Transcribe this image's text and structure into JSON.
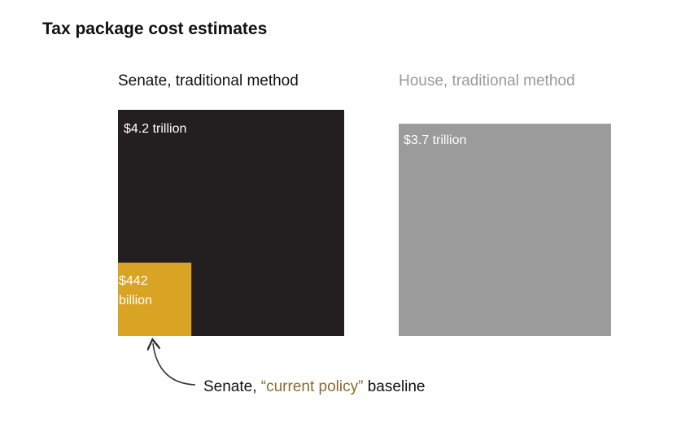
{
  "title": "Tax package cost estimates",
  "colors": {
    "senate": "#231f20",
    "house": "#9b9b9b",
    "baseline": "#d9a324",
    "highlight_text": "#8a6a2e"
  },
  "chart_data": {
    "type": "proportional-area",
    "unit": "USD",
    "panels": [
      {
        "label": "Senate, traditional method",
        "value": 4200,
        "value_label": "$4.2 trillion"
      },
      {
        "label": "House, traditional method",
        "value": 3700,
        "value_label": "$3.7 trillion"
      }
    ],
    "inset": {
      "value": 442,
      "value_label_line1": "$442",
      "value_label_line2": "billion",
      "parent": "Senate, traditional method"
    },
    "annotation": {
      "prefix": "Senate, ",
      "quoted": "“current policy”",
      "suffix": " baseline"
    }
  }
}
